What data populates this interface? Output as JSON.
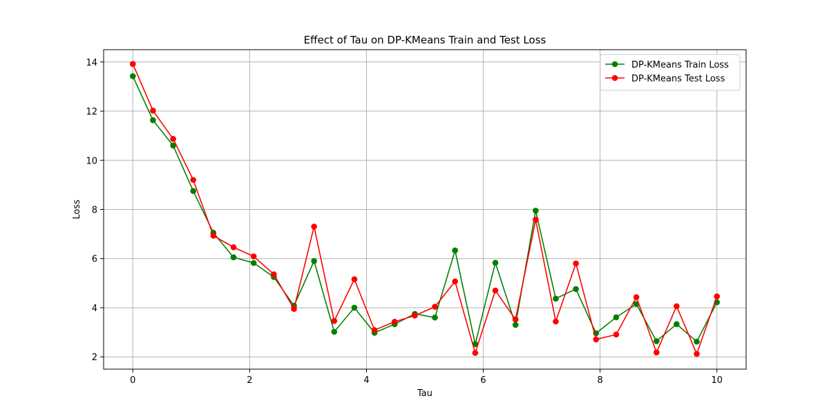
{
  "chart_data": {
    "type": "line",
    "title": "Effect of Tau on DP-KMeans Train and Test Loss",
    "xlabel": "Tau",
    "ylabel": "Loss",
    "xlim": [
      -0.5,
      10.5
    ],
    "ylim": [
      1.5,
      14.5
    ],
    "xticks": [
      0,
      2,
      4,
      6,
      8,
      10
    ],
    "yticks": [
      2,
      4,
      6,
      8,
      10,
      12,
      14
    ],
    "grid": true,
    "legend_position": "top-right",
    "x": [
      0.0,
      0.345,
      0.69,
      1.034,
      1.379,
      1.724,
      2.069,
      2.414,
      2.759,
      3.103,
      3.448,
      3.793,
      4.138,
      4.483,
      4.828,
      5.172,
      5.517,
      5.862,
      6.207,
      6.552,
      6.897,
      7.241,
      7.586,
      7.931,
      8.276,
      8.621,
      8.966,
      9.31,
      9.655,
      10.0
    ],
    "series": [
      {
        "name": "DP-KMeans Train Loss",
        "color": "#008000",
        "values": [
          13.42,
          11.63,
          10.6,
          8.75,
          7.05,
          6.05,
          5.82,
          5.25,
          4.08,
          5.9,
          3.02,
          4.0,
          2.98,
          3.33,
          3.75,
          3.6,
          6.33,
          2.52,
          5.83,
          3.3,
          7.95,
          4.37,
          4.76,
          2.96,
          3.61,
          4.15,
          2.64,
          3.33,
          2.62,
          4.22
        ]
      },
      {
        "name": "DP-KMeans Test Loss",
        "color": "#ff0000",
        "values": [
          13.92,
          12.02,
          10.87,
          9.2,
          6.93,
          6.46,
          6.09,
          5.36,
          3.95,
          7.3,
          3.46,
          5.16,
          3.09,
          3.43,
          3.68,
          4.04,
          5.07,
          2.16,
          4.7,
          3.52,
          7.58,
          3.44,
          5.8,
          2.71,
          2.91,
          4.43,
          2.18,
          4.06,
          2.12,
          4.46
        ]
      }
    ]
  }
}
